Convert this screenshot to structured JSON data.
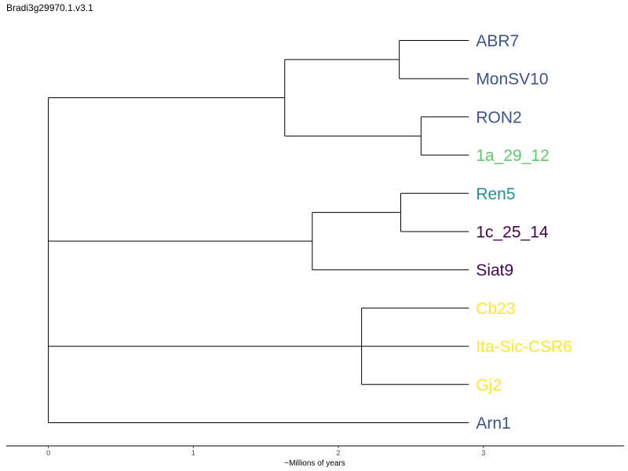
{
  "chart_data": {
    "type": "dendrogram",
    "title": "Bradi3g29970.1.v3.1",
    "xlabel": "~Millions of years",
    "xlim": [
      -0.29,
      3.97
    ],
    "x_ticks": [
      0,
      1,
      2,
      3
    ],
    "tips": [
      {
        "name": "ABR7",
        "color": "#3b528b"
      },
      {
        "name": "MonSV10",
        "color": "#3b528b"
      },
      {
        "name": "RON2",
        "color": "#3b528b"
      },
      {
        "name": "1a_29_12",
        "color": "#5ec962"
      },
      {
        "name": "Ren5",
        "color": "#21918c"
      },
      {
        "name": "1c_25_14",
        "color": "#440154"
      },
      {
        "name": "Siat9",
        "color": "#440154"
      },
      {
        "name": "Cb23",
        "color": "#fde725"
      },
      {
        "name": "Ita-Sic-CSR6",
        "color": "#fde725"
      },
      {
        "name": "Gj2",
        "color": "#fde725"
      },
      {
        "name": "Arn1",
        "color": "#3b528b"
      }
    ],
    "tip_x": 2.9,
    "clades": [
      {
        "id": "root",
        "x": 0.0,
        "children": [
          "n1",
          "n4",
          "n6",
          "Arn1"
        ]
      },
      {
        "id": "n1",
        "x": 1.63,
        "children": [
          "n2",
          "n3"
        ]
      },
      {
        "id": "n2",
        "x": 2.42,
        "children": [
          "ABR7",
          "MonSV10"
        ]
      },
      {
        "id": "n3",
        "x": 2.57,
        "children": [
          "RON2",
          "1a_29_12"
        ]
      },
      {
        "id": "n4",
        "x": 1.82,
        "children": [
          "n5",
          "Siat9"
        ]
      },
      {
        "id": "n5",
        "x": 2.43,
        "children": [
          "Ren5",
          "1c_25_14"
        ]
      },
      {
        "id": "n6",
        "x": 2.16,
        "children": [
          "Cb23",
          "Ita-Sic-CSR6",
          "Gj2"
        ]
      }
    ]
  }
}
